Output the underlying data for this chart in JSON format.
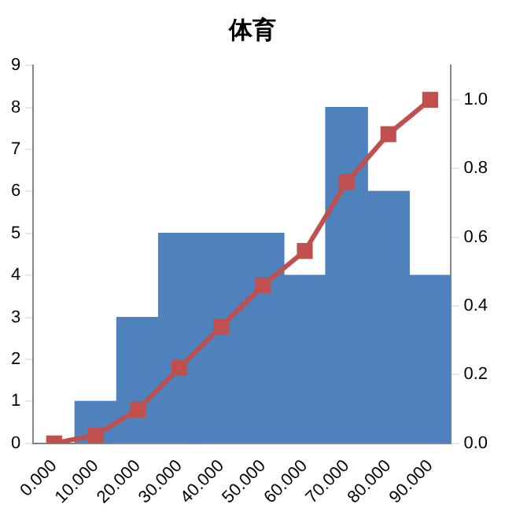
{
  "chart_data": {
    "type": "bar",
    "title": "体育",
    "categories": [
      "0.000",
      "10.000",
      "20.000",
      "30.000",
      "40.000",
      "50.000",
      "60.000",
      "70.000",
      "80.000",
      "90.000"
    ],
    "series": [
      {
        "color": "#4f81bd",
        "values": [
          0,
          1,
          3,
          5,
          5,
          5,
          4,
          8,
          6,
          4
        ]
      },
      {
        "type": "line",
        "axis": "y2",
        "color": "#c0504d",
        "marker": "square",
        "values": [
          0,
          0.024,
          0.098,
          0.22,
          0.34,
          0.46,
          0.56,
          0.76,
          0.9,
          1.0
        ]
      }
    ],
    "ylim": [
      0,
      9
    ],
    "yticks": [
      0,
      1,
      2,
      3,
      4,
      5,
      6,
      7,
      8,
      9
    ],
    "y2lim": [
      0,
      1.1
    ],
    "y2ticks": [
      {
        "value": 0,
        "label": "0.0"
      },
      {
        "value": 0.2,
        "label": "0.2"
      },
      {
        "value": 0.4,
        "label": "0.4"
      },
      {
        "value": 0.6,
        "label": "0.6"
      },
      {
        "value": 0.8,
        "label": "0.8"
      },
      {
        "value": 1,
        "label": "1.0"
      }
    ],
    "grid": false,
    "legend": false
  }
}
